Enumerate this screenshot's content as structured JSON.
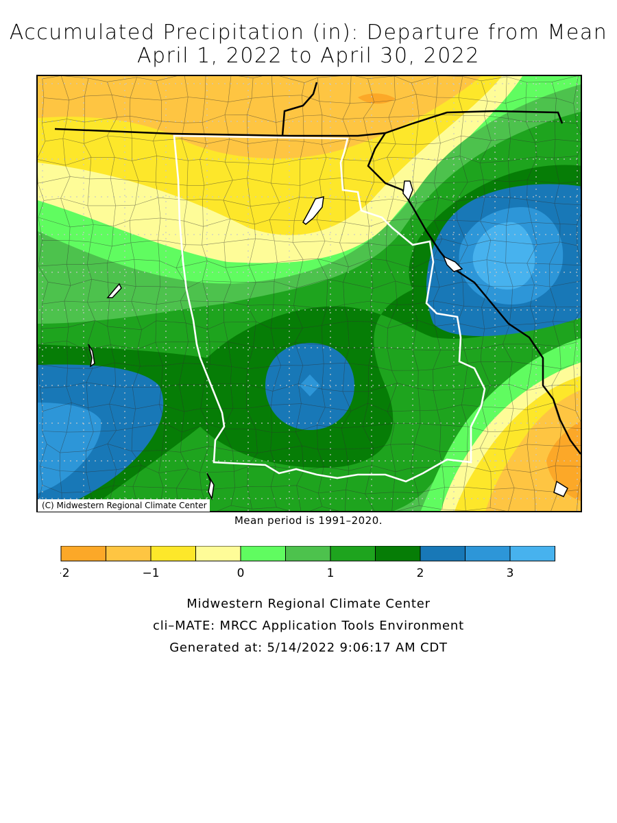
{
  "title": {
    "line1": "Accumulated Precipitation (in): Departure from Mean",
    "line2": "April 1, 2022 to April 30, 2022"
  },
  "map": {
    "copyright": "(C) Midwestern Regional Climate Center",
    "units": "in",
    "value_range_shown": [
      -2,
      3.5
    ],
    "features": {
      "north_orange_band_value": -1.5,
      "central_green_high_value": 2.5,
      "east_blue_high_value": 3.5,
      "southwest_blue_value": 3.0,
      "southeast_orange_value": -2.0
    },
    "colors": {
      "state_border": "#ffffff",
      "national_border": "#000000",
      "county_line": "#333333",
      "grid_dots": "#c8c8c8"
    }
  },
  "mean_period": "Mean period is 1991–2020.",
  "legend": {
    "bins": [
      {
        "from": -2.0,
        "to": -1.5,
        "color": "#fca828"
      },
      {
        "from": -1.5,
        "to": -1.0,
        "color": "#fec542"
      },
      {
        "from": -1.0,
        "to": -0.5,
        "color": "#fde72a"
      },
      {
        "from": -0.5,
        "to": 0.0,
        "color": "#fefc98"
      },
      {
        "from": 0.0,
        "to": 0.5,
        "color": "#60fc60"
      },
      {
        "from": 0.5,
        "to": 1.0,
        "color": "#4dc24d"
      },
      {
        "from": 1.0,
        "to": 1.5,
        "color": "#1ea41e"
      },
      {
        "from": 1.5,
        "to": 2.0,
        "color": "#067d06"
      },
      {
        "from": 2.0,
        "to": 2.5,
        "color": "#1878b7"
      },
      {
        "from": 2.5,
        "to": 3.0,
        "color": "#2d96d8"
      },
      {
        "from": 3.0,
        "to": 3.5,
        "color": "#47b2ee"
      }
    ],
    "tick_labels": [
      {
        "value": -2,
        "label": "−2"
      },
      {
        "value": -1,
        "label": "−1"
      },
      {
        "value": 0,
        "label": "0"
      },
      {
        "value": 1,
        "label": "1"
      },
      {
        "value": 2,
        "label": "2"
      },
      {
        "value": 3,
        "label": "3"
      }
    ]
  },
  "footer": {
    "line1": "Midwestern Regional Climate Center",
    "line2": "cli–MATE: MRCC Application Tools Environment",
    "line3": "Generated at: 5/14/2022 9:06:17 AM CDT"
  }
}
